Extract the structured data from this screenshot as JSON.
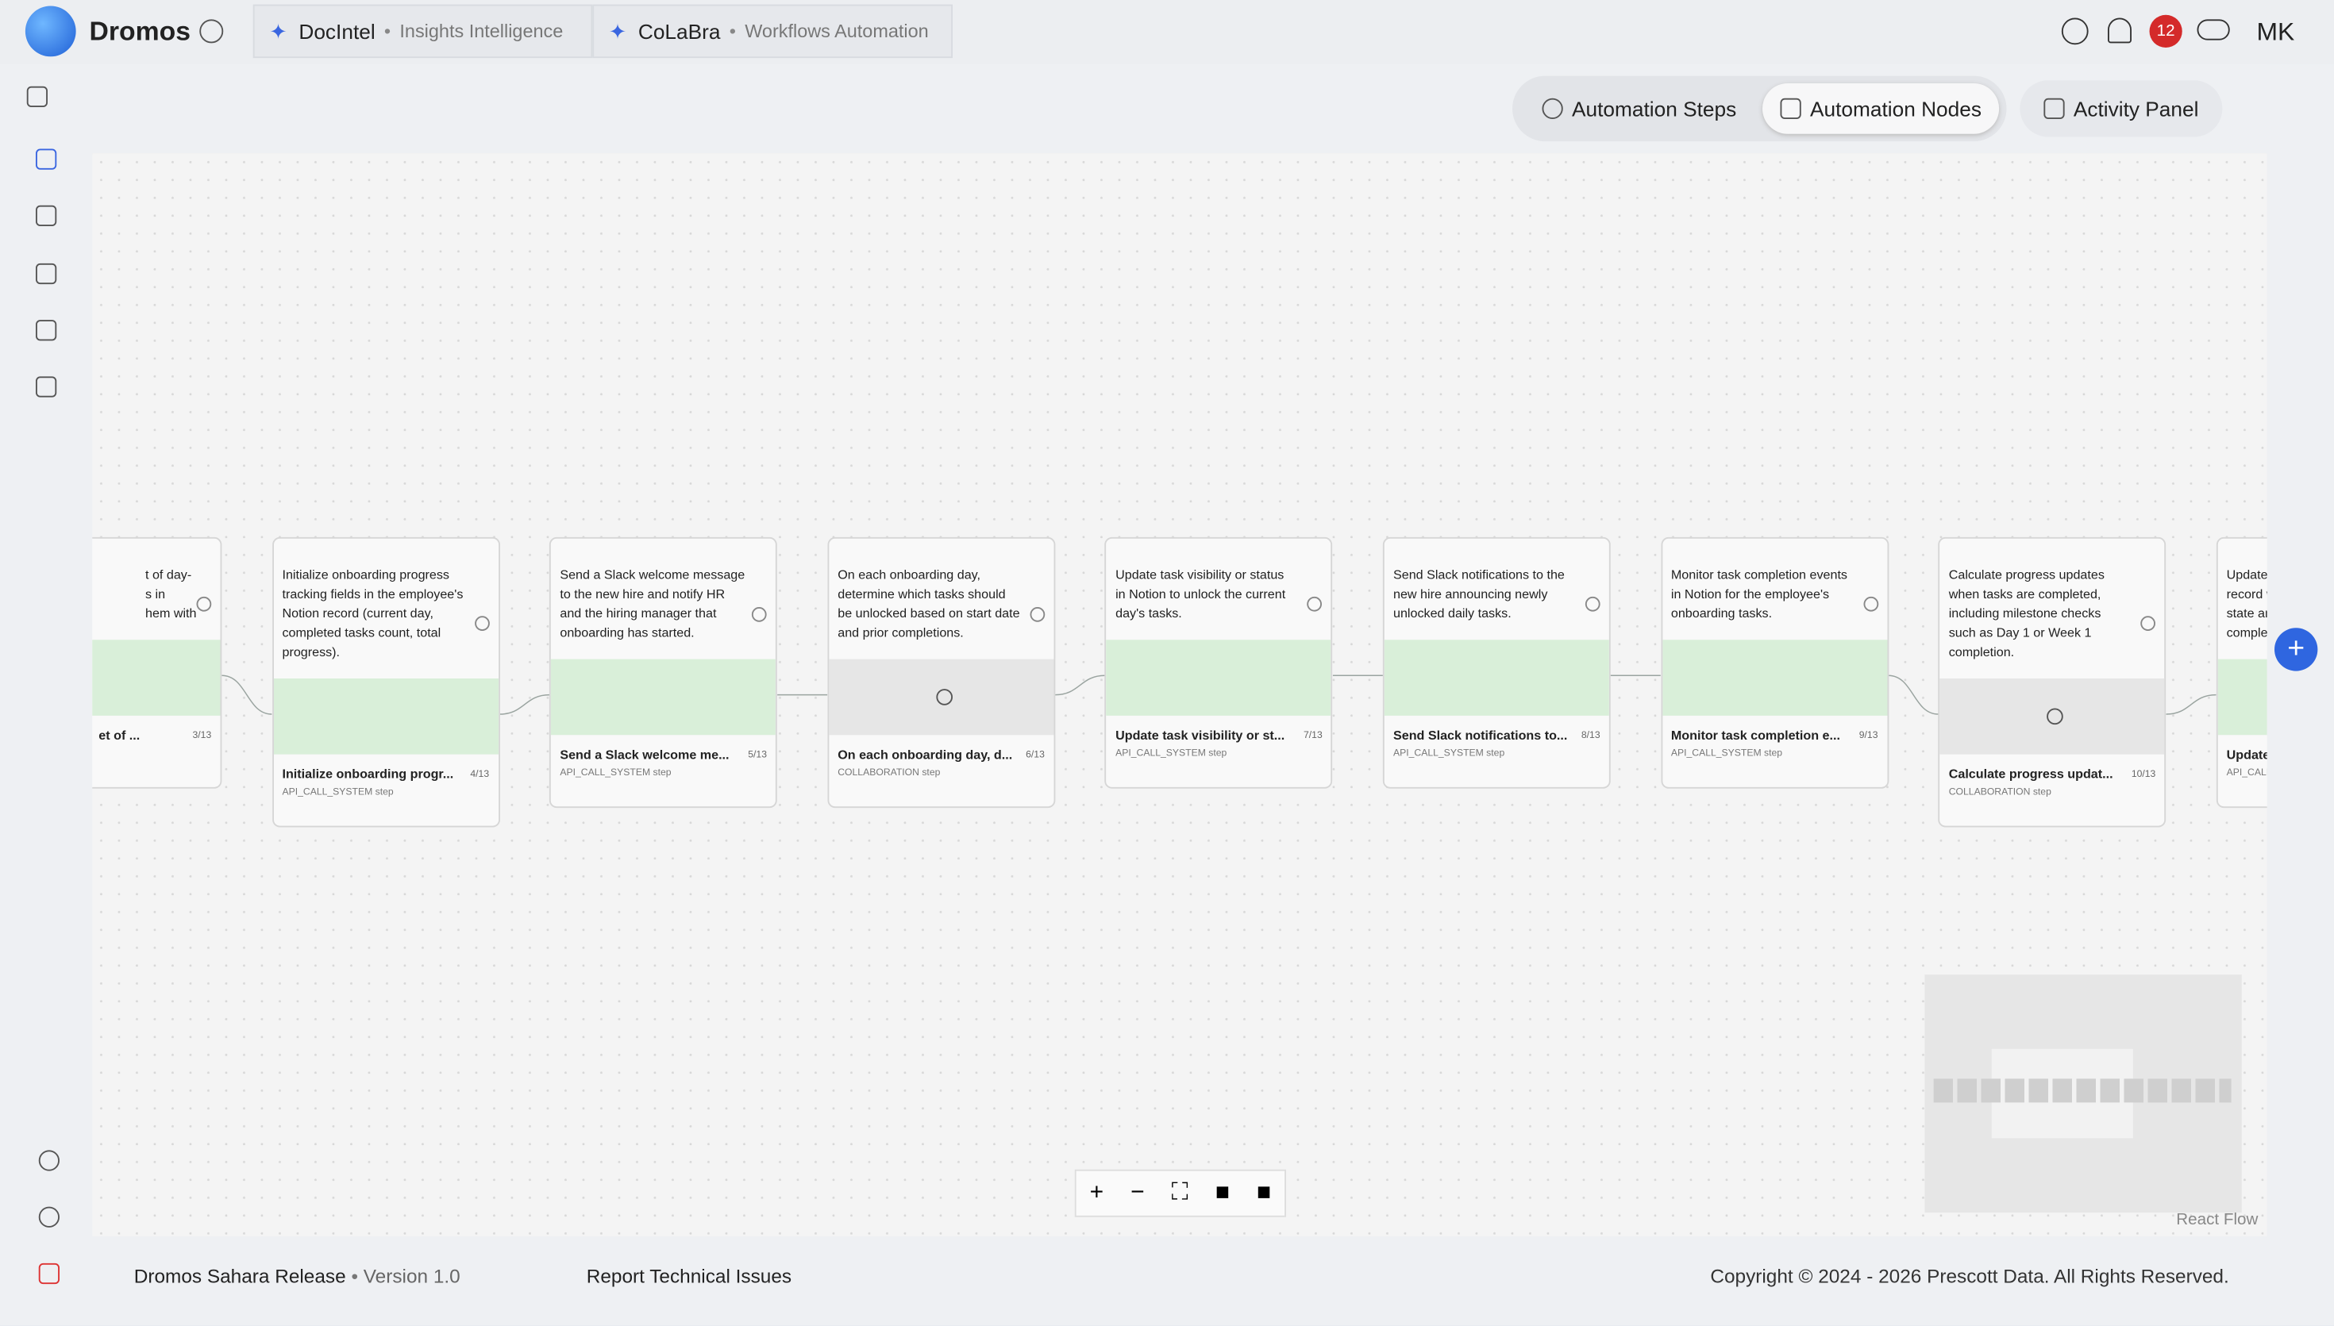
{
  "header": {
    "brand": "Dromos",
    "tabs": [
      {
        "name": "DocIntel",
        "sub": "Insights Intelligence"
      },
      {
        "name": "CoLaBra",
        "sub": "Workflows Automation"
      }
    ],
    "badge": "12",
    "user": "MK"
  },
  "toolbar": {
    "steps": "Automation Steps",
    "nodes": "Automation Nodes",
    "activity": "Activity Panel"
  },
  "nodes": [
    {
      "lines": [
        "t of day-",
        "s in",
        "hem with"
      ],
      "title": "et of ...",
      "step": "3/13",
      "band": "green"
    },
    {
      "lines": [
        "Initialize onboarding progress",
        "tracking fields in the employee's",
        "Notion record (current day,",
        "completed tasks count, total",
        "progress)."
      ],
      "title": "Initialize onboarding progr...",
      "step": "4/13",
      "type": "API_CALL_SYSTEM step",
      "band": "green"
    },
    {
      "lines": [
        "Send a Slack welcome message",
        "to the new hire and notify HR",
        "and the hiring manager that",
        "onboarding has started."
      ],
      "title": "Send a Slack welcome me...",
      "step": "5/13",
      "type": "API_CALL_SYSTEM step",
      "band": "green"
    },
    {
      "lines": [
        "On each onboarding day,",
        "determine which tasks should",
        "be unlocked based on start date",
        "and prior completions."
      ],
      "title": "On each onboarding day, d...",
      "step": "6/13",
      "type": "COLLABORATION step",
      "band": "gray"
    },
    {
      "lines": [
        "Update task visibility or status",
        "in Notion to unlock the current",
        "day's tasks."
      ],
      "title": "Update task visibility or st...",
      "step": "7/13",
      "type": "API_CALL_SYSTEM step",
      "band": "green"
    },
    {
      "lines": [
        "Send Slack notifications to the",
        "new hire announcing newly",
        "unlocked daily tasks."
      ],
      "title": "Send Slack notifications to...",
      "step": "8/13",
      "type": "API_CALL_SYSTEM step",
      "band": "green"
    },
    {
      "lines": [
        "Monitor task completion events",
        "in Notion for the employee's",
        "onboarding tasks."
      ],
      "title": "Monitor task completion e...",
      "step": "9/13",
      "type": "API_CALL_SYSTEM step",
      "band": "green"
    },
    {
      "lines": [
        "Calculate progress updates",
        "when tasks are completed,",
        "including milestone checks",
        "such as Day 1 or Week 1",
        "completion."
      ],
      "title": "Calculate progress updat...",
      "step": "10/13",
      "type": "COLLABORATION step",
      "band": "gray"
    },
    {
      "lines": [
        "Update the en",
        "record with th",
        "state and cum",
        "completion m"
      ],
      "title": "Update the en",
      "type": "API_CALL_SYSTEM",
      "band": "green"
    }
  ],
  "canvas": {
    "attribution": "React Flow"
  },
  "footer": {
    "release": "Dromos Sahara Release",
    "version": "Version 1.0",
    "report": "Report Technical Issues",
    "copyright": "Copyright © 2024 - 2026 Prescott Data. All Rights Reserved."
  }
}
